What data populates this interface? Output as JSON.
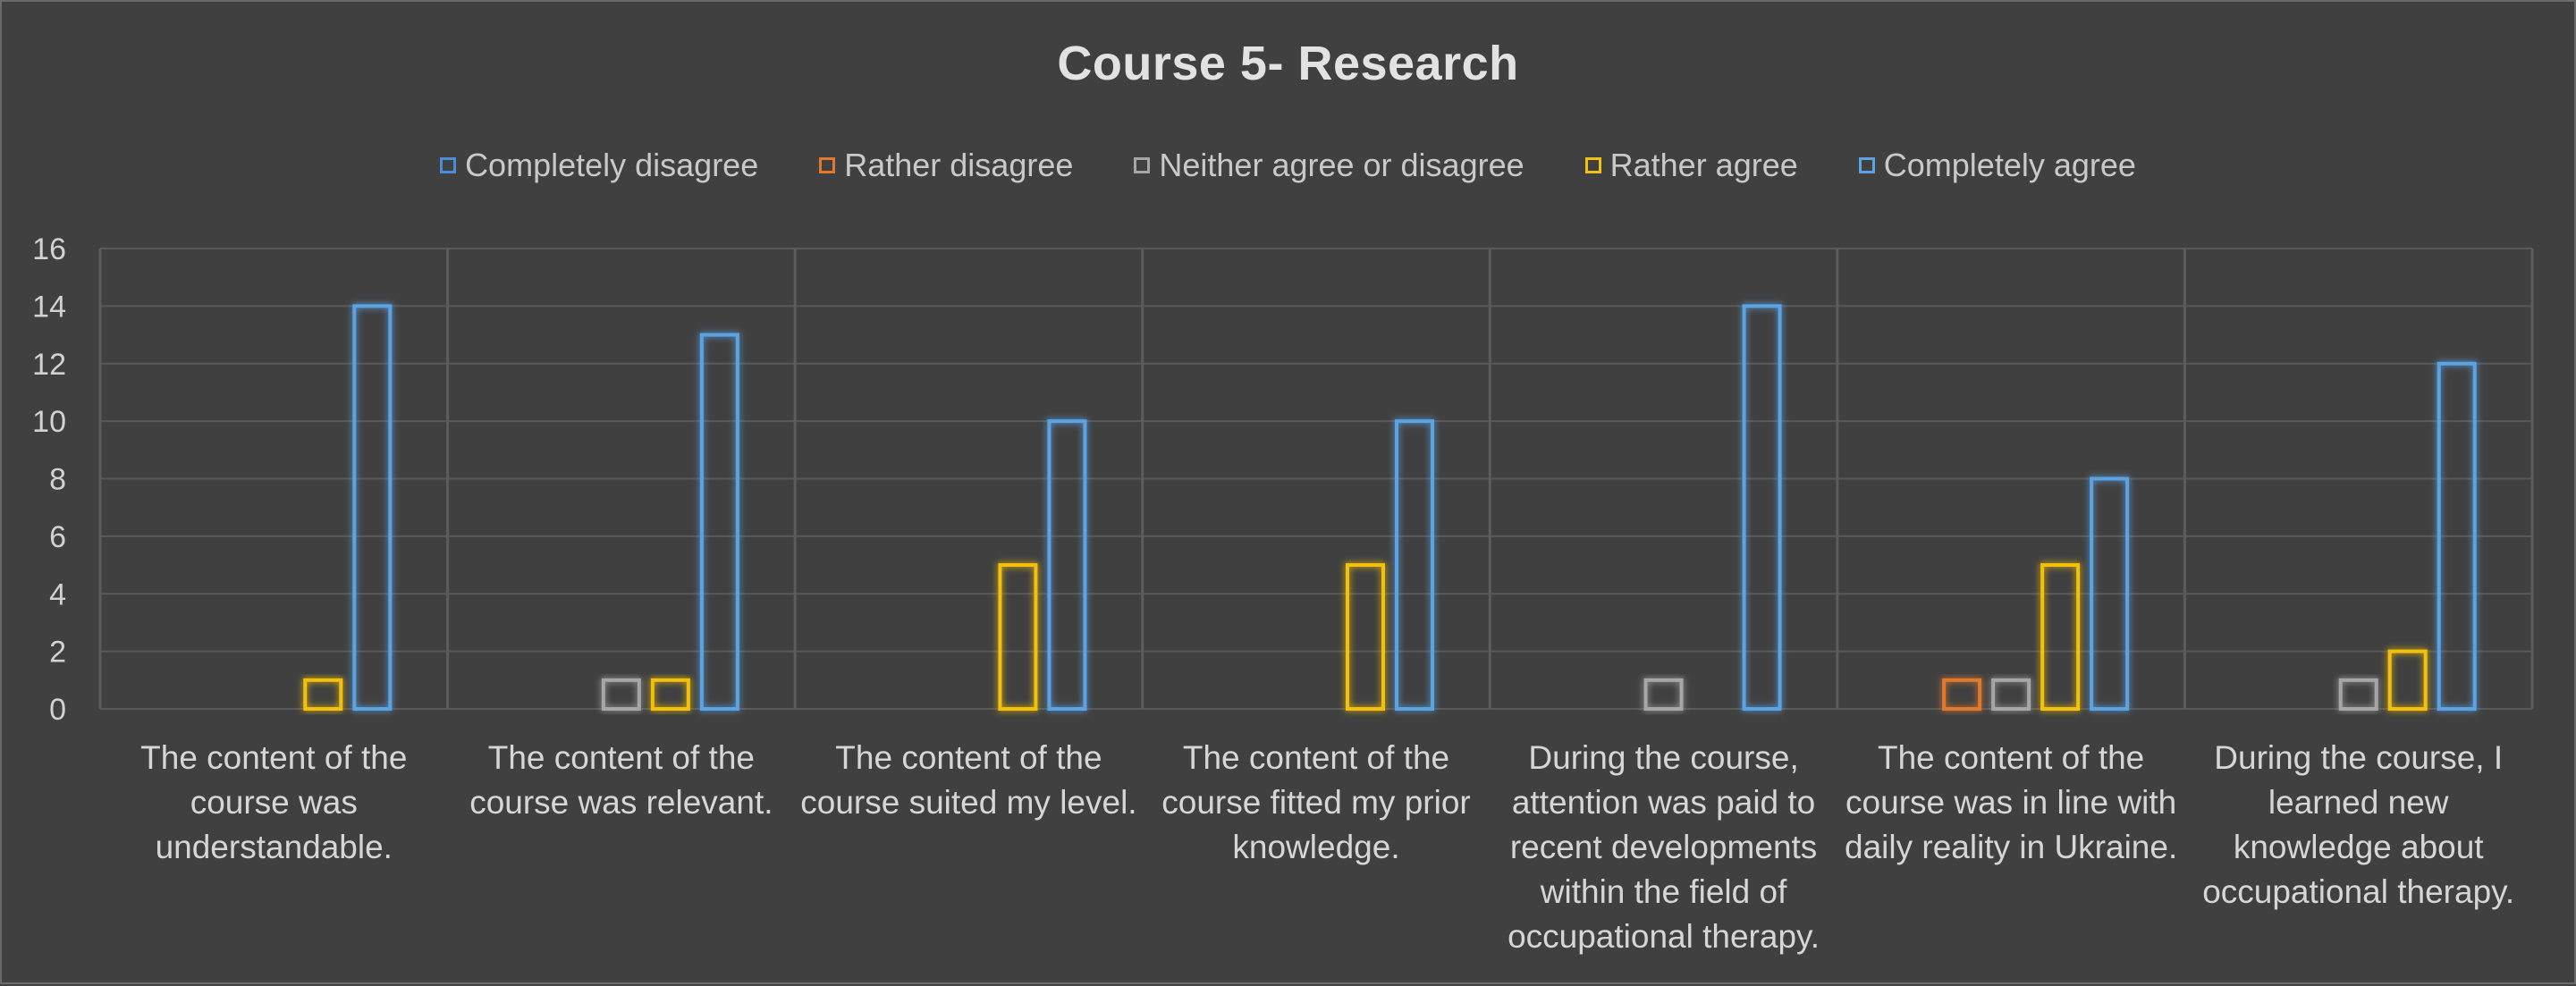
{
  "chart_data": {
    "type": "bar",
    "title": "Course 5- Research",
    "xlabel": "",
    "ylabel": "",
    "ylim": [
      0,
      16
    ],
    "yticks": [
      0,
      2,
      4,
      6,
      8,
      10,
      12,
      14,
      16
    ],
    "grid": true,
    "legend_position": "top",
    "categories": [
      [
        "The content of the",
        "course was",
        "understandable."
      ],
      [
        "The content of the",
        "course was relevant."
      ],
      [
        "The content of the",
        "course suited my level."
      ],
      [
        "The content of the",
        "course fitted my prior",
        "knowledge."
      ],
      [
        "During the course,",
        "attention was paid to",
        "recent developments",
        "within the field of",
        "occupational therapy."
      ],
      [
        "The content of the",
        "course was in line with",
        "daily reality in Ukraine."
      ],
      [
        "During the course, I",
        "learned new",
        "knowledge about",
        "occupational therapy."
      ]
    ],
    "series": [
      {
        "name": "Completely disagree",
        "color": "#4a8fd6",
        "values": [
          0,
          0,
          0,
          0,
          0,
          0,
          0
        ]
      },
      {
        "name": "Rather disagree",
        "color": "#e0782e",
        "values": [
          0,
          0,
          0,
          0,
          0,
          1,
          0
        ]
      },
      {
        "name": "Neither agree or disagree",
        "color": "#a6a6a6",
        "values": [
          0,
          1,
          0,
          0,
          1,
          1,
          1
        ]
      },
      {
        "name": "Rather agree",
        "color": "#f2c011",
        "values": [
          1,
          1,
          5,
          5,
          0,
          5,
          2
        ]
      },
      {
        "name": "Completely agree",
        "color": "#5ba3e3",
        "values": [
          14,
          13,
          10,
          10,
          14,
          8,
          12
        ]
      }
    ]
  }
}
